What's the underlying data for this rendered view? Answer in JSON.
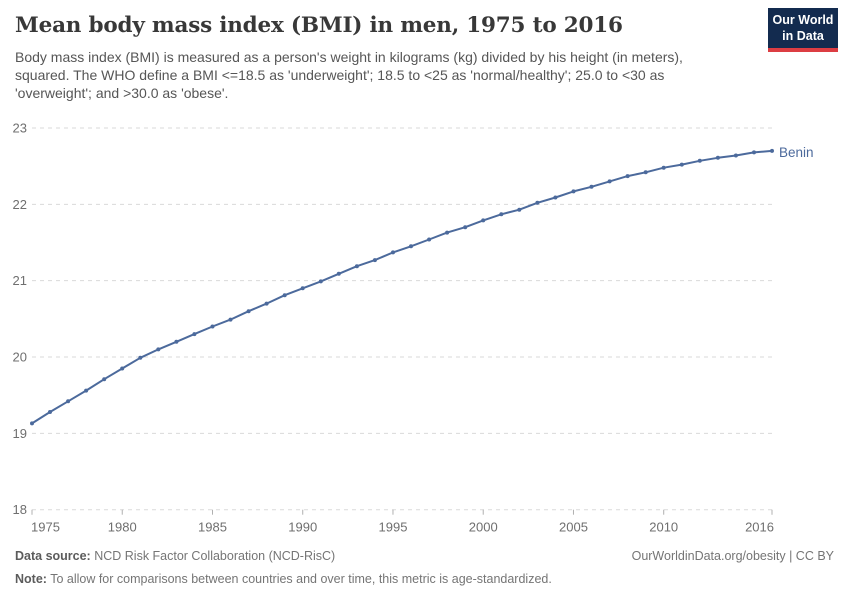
{
  "header": {
    "title": "Mean body mass index (BMI) in men, 1975 to 2016",
    "subtitle": "Body mass index (BMI) is measured as a person's weight in kilograms (kg) divided by his height (in meters), squared. The WHO define a BMI <=18.5 as 'underweight'; 18.5 to <25 as 'normal/healthy'; 25.0 to <30 as 'overweight'; and >30.0 as 'obese'."
  },
  "logo": {
    "line1": "Our World",
    "line2": "in Data",
    "bg_color": "#132b4f",
    "stripe_color": "#dc3d43"
  },
  "chart_data": {
    "type": "line",
    "title": "Mean body mass index (BMI) in men, 1975 to 2016",
    "xlabel": "",
    "ylabel": "",
    "x": [
      1975,
      1976,
      1977,
      1978,
      1979,
      1980,
      1981,
      1982,
      1983,
      1984,
      1985,
      1986,
      1987,
      1988,
      1989,
      1990,
      1991,
      1992,
      1993,
      1994,
      1995,
      1996,
      1997,
      1998,
      1999,
      2000,
      2001,
      2002,
      2003,
      2004,
      2005,
      2006,
      2007,
      2008,
      2009,
      2010,
      2011,
      2012,
      2013,
      2014,
      2015,
      2016
    ],
    "series": [
      {
        "name": "Benin",
        "color": "#4C6A9C",
        "values": [
          19.13,
          19.28,
          19.42,
          19.56,
          19.71,
          19.85,
          19.99,
          20.1,
          20.2,
          20.3,
          20.4,
          20.49,
          20.6,
          20.7,
          20.81,
          20.9,
          20.99,
          21.09,
          21.19,
          21.27,
          21.37,
          21.45,
          21.54,
          21.63,
          21.7,
          21.79,
          21.87,
          21.93,
          22.02,
          22.09,
          22.17,
          22.23,
          22.3,
          22.37,
          22.42,
          22.48,
          22.52,
          22.57,
          22.61,
          22.64,
          22.68,
          22.7
        ]
      }
    ],
    "ylim": [
      18,
      23
    ],
    "yticks": [
      18,
      19,
      20,
      21,
      22,
      23
    ],
    "xticks": [
      1975,
      1980,
      1985,
      1990,
      1995,
      2000,
      2005,
      2010,
      2016
    ],
    "grid": "horizontal-dashed",
    "legend_position": "end-of-line",
    "marker": "point",
    "grid_color": "#dadada",
    "tick_color": "#b0b0b0",
    "axis_label_color": "#6f6f6f"
  },
  "footer": {
    "source_label": "Data source:",
    "source_text": " NCD Risk Factor Collaboration (NCD-RisC)",
    "note_label": "Note:",
    "note_text": " To allow for comparisons between countries and over time, this metric is age-standardized.",
    "link_text": "OurWorldinData.org/obesity | CC BY"
  }
}
